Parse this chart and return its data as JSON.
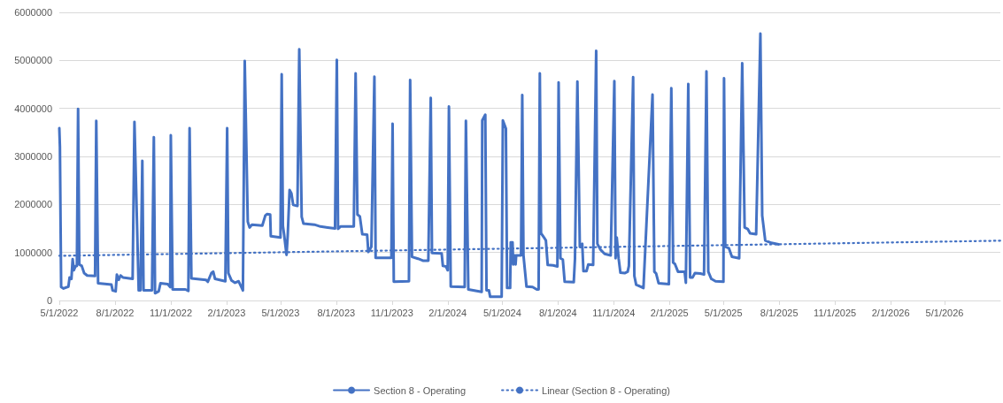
{
  "chart_data": {
    "type": "line",
    "marker": "none",
    "grid": "y",
    "legend": "bottom",
    "xlim": [
      "2022-05-01",
      "2026-08-01"
    ],
    "xticks": [
      {
        "value": "2022-05-01",
        "label": "5/1/2022"
      },
      {
        "value": "2022-08-01",
        "label": "8/1/2022"
      },
      {
        "value": "2022-11-01",
        "label": "11/1/2022"
      },
      {
        "value": "2023-02-01",
        "label": "2/1/2023"
      },
      {
        "value": "2023-05-01",
        "label": "5/1/2023"
      },
      {
        "value": "2023-08-01",
        "label": "8/1/2023"
      },
      {
        "value": "2023-11-01",
        "label": "11/1/2023"
      },
      {
        "value": "2024-02-01",
        "label": "2/1/2024"
      },
      {
        "value": "2024-05-01",
        "label": "5/1/2024"
      },
      {
        "value": "2024-08-01",
        "label": "8/1/2024"
      },
      {
        "value": "2024-11-01",
        "label": "11/1/2024"
      },
      {
        "value": "2025-02-01",
        "label": "2/1/2025"
      },
      {
        "value": "2025-05-01",
        "label": "5/1/2025"
      },
      {
        "value": "2025-08-01",
        "label": "8/1/2025"
      },
      {
        "value": "2025-11-01",
        "label": "11/1/2025"
      },
      {
        "value": "2026-02-01",
        "label": "2/1/2026"
      },
      {
        "value": "2026-05-01",
        "label": "5/1/2026"
      }
    ],
    "ylim": [
      0,
      6000000
    ],
    "yticks": [
      0,
      1000000,
      2000000,
      3000000,
      4000000,
      5000000,
      6000000
    ],
    "series": [
      {
        "name": "Section 8 - Operating",
        "color": "#4472c4",
        "line_style": "solid",
        "x": [
          "2022-05-01",
          "2022-05-02",
          "2022-05-04",
          "2022-05-08",
          "2022-05-16",
          "2022-05-18",
          "2022-05-21",
          "2022-05-23",
          "2022-05-25",
          "2022-05-28",
          "2022-05-30",
          "2022-06-01",
          "2022-06-03",
          "2022-06-07",
          "2022-06-11",
          "2022-06-16",
          "2022-06-29",
          "2022-07-01",
          "2022-07-04",
          "2022-07-26",
          "2022-07-28",
          "2022-08-02",
          "2022-08-04",
          "2022-08-07",
          "2022-08-10",
          "2022-08-14",
          "2022-08-30",
          "2022-09-02",
          "2022-09-09",
          "2022-09-12",
          "2022-09-15",
          "2022-09-17",
          "2022-10-01",
          "2022-10-04",
          "2022-10-06",
          "2022-10-12",
          "2022-10-15",
          "2022-10-27",
          "2022-10-31",
          "2022-11-01",
          "2022-11-04",
          "2022-11-25",
          "2022-11-30",
          "2022-12-02",
          "2022-12-05",
          "2022-12-29",
          "2023-01-01",
          "2023-01-07",
          "2023-01-10",
          "2023-01-13",
          "2023-01-30",
          "2023-02-02",
          "2023-02-04",
          "2023-02-09",
          "2023-02-15",
          "2023-02-21",
          "2023-02-25",
          "2023-02-28",
          "2023-03-03",
          "2023-03-08",
          "2023-03-11",
          "2023-03-15",
          "2023-04-01",
          "2023-04-06",
          "2023-04-09",
          "2023-04-14",
          "2023-04-15",
          "2023-05-01",
          "2023-05-03",
          "2023-05-05",
          "2023-05-07",
          "2023-05-11",
          "2023-05-13",
          "2023-05-16",
          "2023-05-19",
          "2023-05-22",
          "2023-05-29",
          "2023-06-01",
          "2023-06-05",
          "2023-06-08",
          "2023-06-26",
          "2023-07-06",
          "2023-07-18",
          "2023-07-30",
          "2023-08-02",
          "2023-08-04",
          "2023-08-08",
          "2023-08-30",
          "2023-09-02",
          "2023-09-05",
          "2023-09-09",
          "2023-09-13",
          "2023-09-21",
          "2023-09-23",
          "2023-09-28",
          "2023-10-03",
          "2023-10-05",
          "2023-10-31",
          "2023-11-02",
          "2023-11-04",
          "2023-11-29",
          "2023-12-01",
          "2023-12-04",
          "2023-12-14",
          "2023-12-22",
          "2023-12-31",
          "2024-01-04",
          "2024-01-06",
          "2024-01-22",
          "2024-01-24",
          "2024-01-29",
          "2024-02-01",
          "2024-02-03",
          "2024-02-06",
          "2024-02-29",
          "2024-03-02",
          "2024-03-06",
          "2024-03-28",
          "2024-03-29",
          "2024-04-03",
          "2024-04-05",
          "2024-04-09",
          "2024-04-11",
          "2024-04-30",
          "2024-05-02",
          "2024-05-07",
          "2024-05-09",
          "2024-05-14",
          "2024-05-15",
          "2024-05-18",
          "2024-05-19",
          "2024-05-22",
          "2024-05-23",
          "2024-05-24",
          "2024-06-01",
          "2024-06-03",
          "2024-06-05",
          "2024-06-10",
          "2024-06-20",
          "2024-06-27",
          "2024-06-30",
          "2024-07-02",
          "2024-07-04",
          "2024-07-09",
          "2024-07-12",
          "2024-07-15",
          "2024-07-24",
          "2024-07-31",
          "2024-08-02",
          "2024-08-05",
          "2024-08-09",
          "2024-08-12",
          "2024-08-27",
          "2024-08-29",
          "2024-09-02",
          "2024-09-06",
          "2024-09-10",
          "2024-09-12",
          "2024-09-17",
          "2024-09-20",
          "2024-09-28",
          "2024-10-03",
          "2024-10-05",
          "2024-10-10",
          "2024-10-17",
          "2024-10-27",
          "2024-11-02",
          "2024-11-04",
          "2024-11-06",
          "2024-11-09",
          "2024-11-12",
          "2024-11-19",
          "2024-11-24",
          "2024-11-26",
          "2024-12-03",
          "2024-12-05",
          "2024-12-08",
          "2024-12-13",
          "2024-12-20",
          "2025-01-04",
          "2025-01-07",
          "2025-01-10",
          "2025-01-14",
          "2025-01-31",
          "2025-02-04",
          "2025-02-07",
          "2025-02-10",
          "2025-02-15",
          "2025-02-26",
          "2025-02-28",
          "2025-03-04",
          "2025-03-07",
          "2025-03-11",
          "2025-03-15",
          "2025-03-24",
          "2025-03-30",
          "2025-04-03",
          "2025-04-06",
          "2025-04-11",
          "2025-04-18",
          "2025-05-01",
          "2025-05-02",
          "2025-05-04",
          "2025-05-10",
          "2025-05-15",
          "2025-05-27",
          "2025-06-01",
          "2025-06-05",
          "2025-06-10",
          "2025-06-14",
          "2025-06-24",
          "2025-07-01",
          "2025-07-04",
          "2025-07-09",
          "2025-07-19",
          "2025-07-31"
        ],
        "values": [
          3590000,
          3200000,
          280000,
          250000,
          290000,
          480000,
          450000,
          860000,
          630000,
          720000,
          720000,
          3990000,
          750000,
          720000,
          570000,
          520000,
          510000,
          3740000,
          360000,
          330000,
          210000,
          190000,
          540000,
          430000,
          520000,
          480000,
          450000,
          3720000,
          210000,
          210000,
          2910000,
          210000,
          210000,
          3400000,
          150000,
          190000,
          360000,
          340000,
          280000,
          3440000,
          230000,
          230000,
          200000,
          3590000,
          460000,
          430000,
          390000,
          570000,
          600000,
          450000,
          400000,
          3590000,
          570000,
          420000,
          370000,
          400000,
          290000,
          210000,
          4990000,
          1640000,
          1520000,
          1580000,
          1560000,
          1770000,
          1800000,
          1790000,
          1340000,
          1310000,
          4710000,
          1550000,
          1370000,
          950000,
          1370000,
          2300000,
          2230000,
          1990000,
          1970000,
          5230000,
          1740000,
          1600000,
          1580000,
          1540000,
          1520000,
          1500000,
          5010000,
          1490000,
          1540000,
          1540000,
          4730000,
          1790000,
          1750000,
          1380000,
          1370000,
          1010000,
          1120000,
          4660000,
          890000,
          890000,
          3680000,
          390000,
          400000,
          4590000,
          910000,
          870000,
          830000,
          830000,
          4220000,
          990000,
          980000,
          720000,
          710000,
          630000,
          4040000,
          290000,
          280000,
          3740000,
          230000,
          180000,
          3750000,
          3870000,
          210000,
          210000,
          80000,
          80000,
          3750000,
          3580000,
          260000,
          260000,
          1210000,
          1210000,
          750000,
          940000,
          750000,
          940000,
          940000,
          4280000,
          940000,
          290000,
          280000,
          230000,
          230000,
          4730000,
          1400000,
          1310000,
          1250000,
          740000,
          730000,
          710000,
          4540000,
          880000,
          850000,
          390000,
          380000,
          870000,
          4560000,
          1120000,
          1180000,
          610000,
          610000,
          750000,
          740000,
          5200000,
          1180000,
          1060000,
          970000,
          940000,
          4570000,
          880000,
          1310000,
          880000,
          580000,
          570000,
          600000,
          720000,
          4650000,
          510000,
          330000,
          300000,
          260000,
          4290000,
          600000,
          560000,
          360000,
          340000,
          4420000,
          790000,
          760000,
          600000,
          600000,
          370000,
          4510000,
          480000,
          480000,
          570000,
          560000,
          540000,
          4770000,
          600000,
          450000,
          400000,
          390000,
          4630000,
          1120000,
          1090000,
          910000,
          880000,
          4940000,
          1520000,
          1490000,
          1400000,
          1380000,
          5560000,
          1770000,
          1250000,
          1200000,
          1170000
        ]
      },
      {
        "name": "Linear (Section 8 - Operating)",
        "color": "#4472c4",
        "line_style": "dotted",
        "x": [
          "2022-05-01",
          "2026-08-01"
        ],
        "values": [
          930000,
          1245000
        ]
      }
    ]
  }
}
